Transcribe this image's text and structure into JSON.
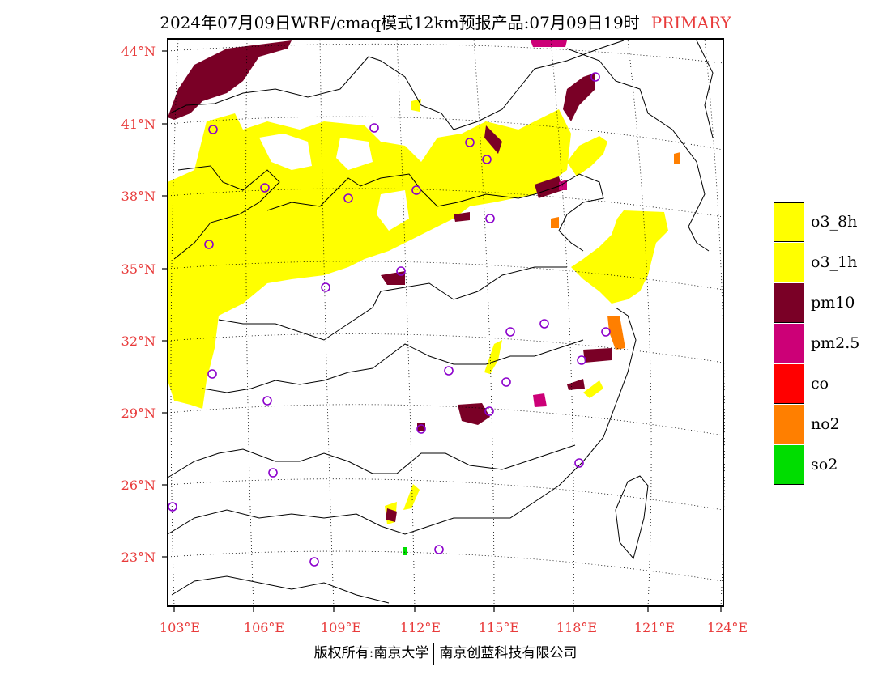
{
  "title": {
    "main": "2024年07月09日WRF/cmaq模式12km预报产品:07月09日19时",
    "tag": "PRIMARY"
  },
  "axes": {
    "lat_labels": [
      "44°N",
      "41°N",
      "38°N",
      "35°N",
      "32°N",
      "29°N",
      "26°N",
      "23°N"
    ],
    "lon_labels": [
      "103°E",
      "106°E",
      "109°E",
      "112°E",
      "115°E",
      "118°E",
      "121°E",
      "124°E"
    ]
  },
  "legend": [
    {
      "label": "o3_8h",
      "color": "#ffff00"
    },
    {
      "label": "o3_1h",
      "color": "#ffff00"
    },
    {
      "label": "pm10",
      "color": "#7a0026"
    },
    {
      "label": "pm2.5",
      "color": "#cc0077"
    },
    {
      "label": "co",
      "color": "#ff0000"
    },
    {
      "label": "no2",
      "color": "#ff7f00"
    },
    {
      "label": "so2",
      "color": "#00dd00"
    }
  ],
  "footer": {
    "left": "版权所有:南京大学",
    "right": "南京创蓝科技有限公司"
  },
  "colors": {
    "tick": "#e83a3a",
    "o3": "#ffff00",
    "pm10": "#7a0026",
    "pm25": "#cc0077",
    "no2": "#ff7f00",
    "so2": "#00dd00",
    "station_marker": "#8b00cc"
  }
}
